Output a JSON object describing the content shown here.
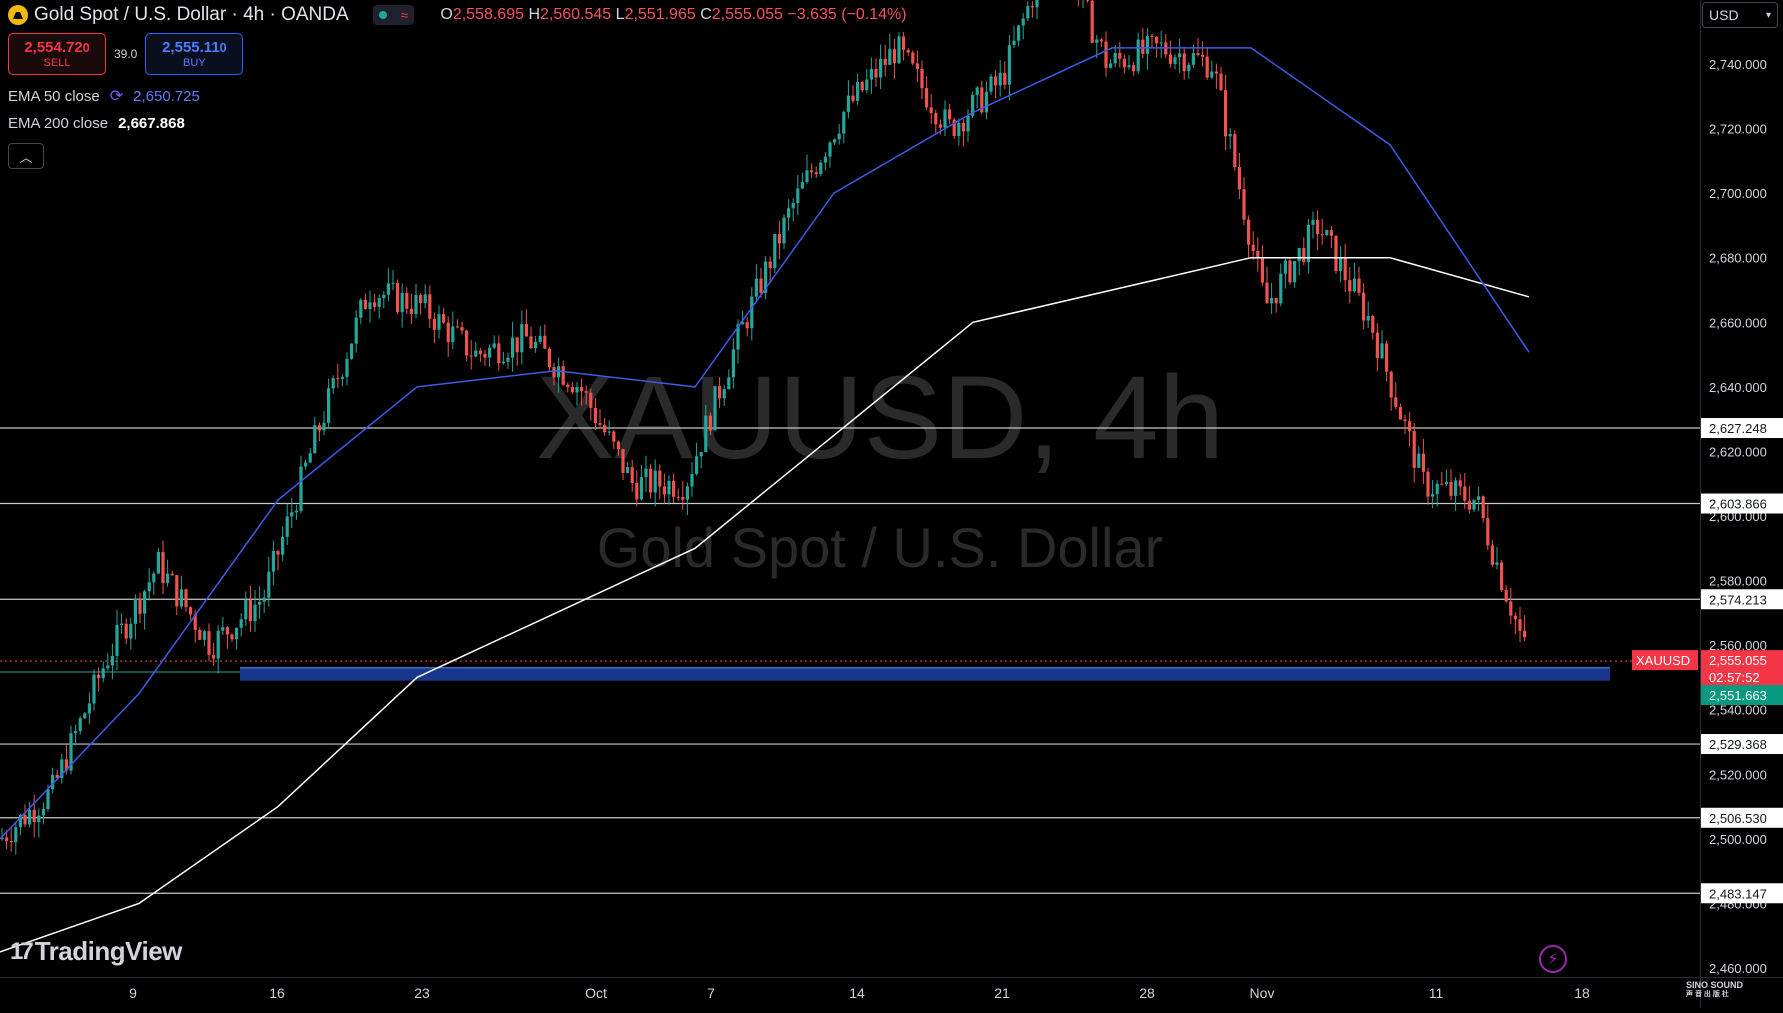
{
  "header": {
    "title": "Gold Spot / U.S. Dollar · 4h · OANDA",
    "o_label": "O",
    "o_value": "2,558.695",
    "h_label": "H",
    "h_value": "2,560.545",
    "l_label": "L",
    "l_value": "2,551.965",
    "c_label": "C",
    "c_value": "2,555.055",
    "change": "−3.635 (−0.14%)",
    "icon": "gold-coin-icon",
    "status_icons": [
      "market-open-dot-icon",
      "wave-icon"
    ]
  },
  "trade": {
    "sell_price": "2,554.72",
    "sell_price_small": "0",
    "sell_label": "SELL",
    "spread": "39.0",
    "buy_price": "2,555.11",
    "buy_price_small": "0",
    "buy_label": "BUY"
  },
  "indicators": {
    "ema50_label": "EMA 50 close",
    "ema50_value": "2,650.725",
    "ema200_label": "EMA 200 close",
    "ema200_value": "2,667.868",
    "collapse_icon": "chevron-up-icon"
  },
  "watermark": {
    "line1": "XAUUSD, 4h",
    "line2": "Gold Spot / U.S. Dollar"
  },
  "currency": {
    "label": "USD",
    "icon": "chevron-down-icon"
  },
  "price_axis": {
    "ticks": [
      "2,740.000",
      "2,720.000",
      "2,700.000",
      "2,680.000",
      "2,660.000",
      "2,640.000",
      "2,620.000",
      "2,600.000",
      "2,580.000",
      "2,560.000",
      "2,540.000",
      "2,520.000",
      "2,500.000",
      "2,480.000",
      "2,460.000"
    ],
    "tick_values": [
      2740,
      2720,
      2700,
      2680,
      2660,
      2640,
      2620,
      2600,
      2580,
      2560,
      2540,
      2520,
      2500,
      2480,
      2460
    ]
  },
  "levels": [
    {
      "label": "2,627.248",
      "value": 2627.248
    },
    {
      "label": "2,603.866",
      "value": 2603.866
    },
    {
      "label": "2,574.213",
      "value": 2574.213
    },
    {
      "label": "2,529.368",
      "value": 2529.368
    },
    {
      "label": "2,506.530",
      "value": 2506.53
    },
    {
      "label": "2,483.147",
      "value": 2483.147
    }
  ],
  "current": {
    "symbol": "XAUUSD",
    "price": "2,555.055",
    "price_value": 2555.055,
    "countdown": "02:57:52",
    "support_label": "2,551.663",
    "support_value": 2551.663
  },
  "time_axis": {
    "labels": [
      "9",
      "16",
      "23",
      "Oct",
      "7",
      "14",
      "21",
      "28",
      "Nov",
      "11",
      "18"
    ]
  },
  "branding": {
    "logo_text": "TradingView",
    "logo_mark": "17",
    "corner_brand_line1": "SINO SOUND",
    "corner_brand_line2": "声 音 出 版 社"
  },
  "colors": {
    "up": "#26a69a",
    "down": "#ef5350",
    "ema50": "#3a5ce6",
    "ema200": "#ffffff",
    "zone": "#2962ff"
  },
  "chart_data": {
    "type": "candlestick",
    "symbol": "XAUUSD",
    "timeframe": "4h",
    "ylim": [
      2450,
      2770
    ],
    "grid": false,
    "x_labels": [
      "9",
      "16",
      "23",
      "Oct",
      "7",
      "14",
      "21",
      "28",
      "Nov",
      "11",
      "18"
    ],
    "close_path": [
      [
        "9",
        2500
      ],
      [
        "12",
        2515
      ],
      [
        "13",
        2555
      ],
      [
        "16",
        2585
      ],
      [
        "19",
        2560
      ],
      [
        "20",
        2575
      ],
      [
        "23",
        2625
      ],
      [
        "26",
        2670
      ],
      [
        "27",
        2665
      ],
      [
        "Oct",
        2650
      ],
      [
        "3",
        2655
      ],
      [
        "7",
        2640
      ],
      [
        "9",
        2610
      ],
      [
        "10",
        2610
      ],
      [
        "14",
        2655
      ],
      [
        "18",
        2695
      ],
      [
        "21",
        2725
      ],
      [
        "23",
        2745
      ],
      [
        "24",
        2720
      ],
      [
        "28",
        2735
      ],
      [
        "30",
        2780
      ],
      [
        "Nov",
        2740
      ],
      [
        "5",
        2745
      ],
      [
        "6",
        2740
      ],
      [
        "7",
        2665
      ],
      [
        "8",
        2690
      ],
      [
        "11",
        2660
      ],
      [
        "12",
        2610
      ],
      [
        "13",
        2605
      ],
      [
        "14",
        2555
      ]
    ],
    "series": [
      {
        "name": "EMA 50 close",
        "last": 2650.725,
        "path": [
          [
            "9",
            2500
          ],
          [
            "16",
            2545
          ],
          [
            "23",
            2605
          ],
          [
            "Oct",
            2640
          ],
          [
            "7",
            2645
          ],
          [
            "14",
            2640
          ],
          [
            "21",
            2700
          ],
          [
            "28",
            2725
          ],
          [
            "Nov",
            2745
          ],
          [
            "6",
            2745
          ],
          [
            "11",
            2715
          ],
          [
            "14",
            2650.725
          ]
        ]
      },
      {
        "name": "EMA 200 close",
        "last": 2667.868,
        "path": [
          [
            "9",
            2465
          ],
          [
            "16",
            2480
          ],
          [
            "23",
            2510
          ],
          [
            "Oct",
            2550
          ],
          [
            "7",
            2570
          ],
          [
            "14",
            2590
          ],
          [
            "21",
            2625
          ],
          [
            "28",
            2660
          ],
          [
            "Nov",
            2670
          ],
          [
            "7",
            2680
          ],
          [
            "11",
            2680
          ],
          [
            "14",
            2667.868
          ]
        ]
      }
    ],
    "horizontal_levels": [
      2627.248,
      2603.866,
      2574.213,
      2529.368,
      2506.53,
      2483.147
    ],
    "support_zone": [
      2549,
      2553
    ],
    "last_price": 2555.055
  }
}
